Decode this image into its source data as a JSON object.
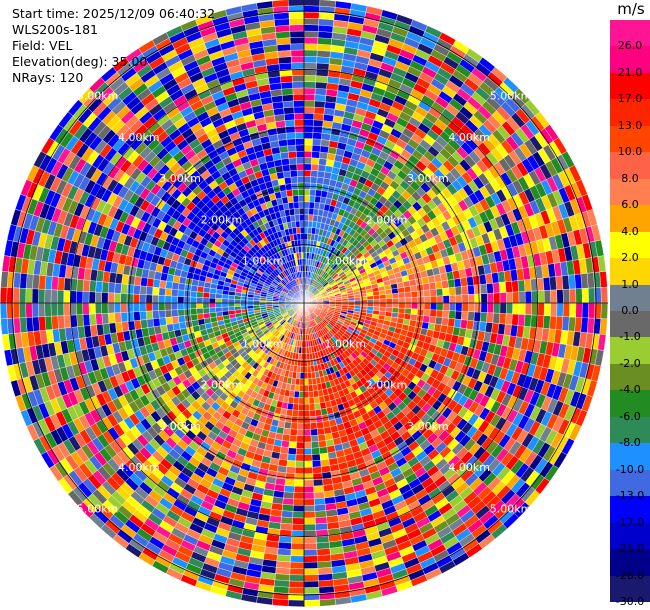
{
  "info": {
    "start_time": "Start time: 2025/12/09 06:40:32",
    "station": "WLS200s-181",
    "field": "Field: VEL",
    "elevation": "Elevation(deg): 35.00",
    "nrays": "NRays: 120"
  },
  "chart_data": {
    "type": "heatmap",
    "projection": "polar-ppi",
    "field": "VEL",
    "unit": "m/s",
    "nrays": 120,
    "elevation_deg": 35.0,
    "range_rings_km": [
      1.0,
      2.0,
      3.0,
      4.0,
      5.0
    ],
    "range_ring_labels": {
      "r1": "1.00km",
      "r2": "2.00km",
      "r3": "3.00km",
      "r4": "4.00km",
      "r5": "5.00km"
    },
    "colorbar_levels": [
      "26.0",
      "21.0",
      "17.0",
      "13.0",
      "10.0",
      "8.0",
      "6.0",
      "4.0",
      "2.0",
      "1.0",
      "0.0",
      "-1.0",
      "-2.0",
      "-4.0",
      "-6.0",
      "-8.0",
      "-10.0",
      "-13.0",
      "-17.0",
      "-21.0",
      "-26.0",
      "-30.0"
    ],
    "colorbar_colors": [
      "#ff1493",
      "#ff0080",
      "#ff0000",
      "#ff2400",
      "#ff4500",
      "#ff6347",
      "#ff7f50",
      "#ffa500",
      "#ffff00",
      "#ffd700",
      "#708090",
      "#696969",
      "#9acd32",
      "#6b8e23",
      "#228b22",
      "#2e8b57",
      "#1e90ff",
      "#4169e1",
      "#0000ff",
      "#0000cd",
      "#00008b",
      "#191970"
    ],
    "dominant_pattern": {
      "north_west": "negative (toward)",
      "south_east": "positive (away)"
    }
  }
}
